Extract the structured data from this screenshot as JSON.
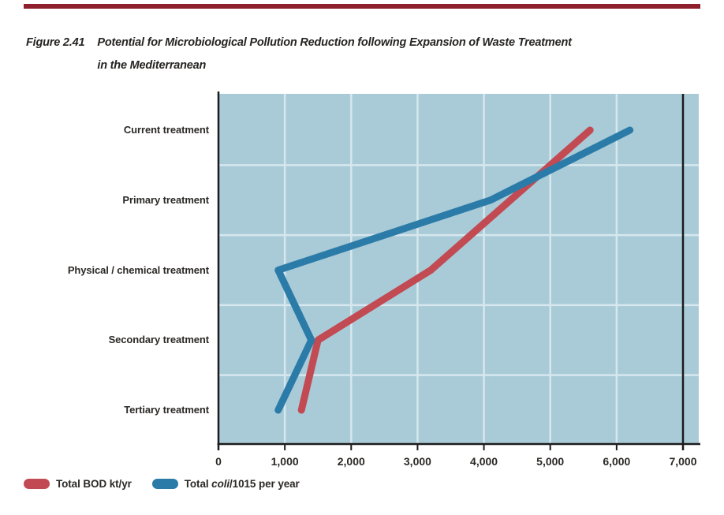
{
  "figure": {
    "prefix": "Figure 2.41",
    "title_line1": "Potential for Microbiological Pollution Reduction following Expansion of Waste Treatment",
    "title_line2": "in the Mediterranean"
  },
  "chart_data": {
    "type": "line",
    "orientation": "horizontal-categories",
    "title": "Potential for Microbiological Pollution Reduction following Expansion of Waste Treatment in the Mediterranean",
    "categories": [
      "Current treatment",
      "Primary treatment",
      "Physical / chemical treatment",
      "Secondary treatment",
      "Tertiary treatment"
    ],
    "series": [
      {
        "name": "Total BOD kt/yr",
        "color": "#c24a52",
        "values": [
          5600,
          4400,
          3200,
          1500,
          1250
        ]
      },
      {
        "name": "Total coli/1015 per year",
        "color": "#2b7ba9",
        "values": [
          6200,
          4100,
          900,
          1400,
          900
        ]
      }
    ],
    "x_axis": {
      "min": 0,
      "max": 7000,
      "tick_step": 1000,
      "tick_labels": [
        "0",
        "1,000",
        "2,000",
        "3,000",
        "4,000",
        "5,000",
        "6,000",
        "7,000"
      ]
    },
    "grid": true,
    "legend_position": "bottom-left",
    "colors": {
      "plot_background": "#a9cbd8",
      "gridline": "#d7e7ee",
      "axis": "#1c1c1c",
      "accent_rule": "#8e1f2d",
      "text": "#2b2926"
    }
  },
  "legend": {
    "items": [
      {
        "swatch_color": "#c24a52",
        "pre": "Total BOD kt/yr",
        "italic": "",
        "post": ""
      },
      {
        "swatch_color": "#2b7ba9",
        "pre": "Total ",
        "italic": "coli",
        "post": "/1015 per year"
      }
    ]
  }
}
